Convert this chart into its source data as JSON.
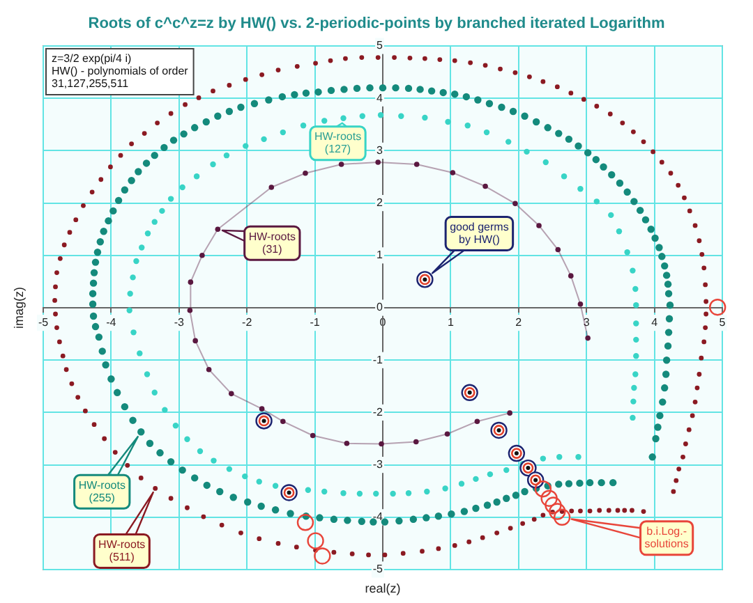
{
  "chart_data": {
    "type": "scatter",
    "title": "Roots of c^c^z=z by HW() vs. 2-periodic-points by branched iterated Logarithm",
    "xlabel": "real(z)",
    "ylabel": "imag(z)",
    "annotations": [
      "z=3/2 exp(pi/4 i)",
      "HW() - polynomials of order",
      "31,127,255,511"
    ],
    "xlim": [
      -5,
      5
    ],
    "ylim": [
      -5,
      5
    ],
    "xticks": [
      -5,
      -4,
      -3,
      -2,
      -1,
      0,
      1,
      2,
      3,
      4,
      5
    ],
    "yticks": [
      -5,
      -4,
      -3,
      -2,
      -1,
      0,
      1,
      2,
      3,
      4,
      5
    ],
    "grid": true,
    "marker": "circle",
    "series": [
      {
        "name": "HW-roots (511)",
        "color": "#8b1a22",
        "x": [
          4.28,
          4.32,
          4.36,
          4.42,
          4.46,
          4.51,
          4.56,
          4.6,
          4.63,
          4.66,
          4.69,
          4.73,
          4.75,
          4.76,
          4.76,
          4.75,
          4.73,
          4.7,
          4.66,
          4.6,
          4.52,
          4.44,
          4.35,
          4.24,
          4.11,
          3.98,
          3.84,
          3.69,
          3.53,
          3.35,
          3.15,
          2.96,
          2.77,
          2.57,
          2.36,
          2.16,
          1.95,
          1.73,
          1.51,
          1.29,
          1.06,
          0.84,
          0.62,
          0.4,
          0.17,
          -0.07,
          -0.31,
          -0.55,
          -0.77,
          -0.99,
          -1.26,
          -1.54,
          -1.78,
          -2.02,
          -2.26,
          -2.5,
          -2.71,
          -2.91,
          -3.12,
          -3.32,
          -3.51,
          -3.7,
          -3.86,
          -4.01,
          -4.15,
          -4.28,
          -4.41,
          -4.52,
          -4.61,
          -4.69,
          -4.75,
          -4.8,
          -4.82,
          -4.83,
          -4.82,
          -4.8,
          -4.76,
          -4.71,
          -4.66,
          -4.58,
          -4.49,
          -4.38,
          -4.25,
          -4.1,
          -3.94,
          -3.76,
          -3.56,
          -3.35,
          -3.12,
          -2.88,
          -2.64,
          -2.37,
          -2.09,
          -1.82,
          -1.54,
          -1.27,
          -0.99,
          -0.72,
          -0.45,
          -0.21,
          0.03,
          0.3,
          0.58,
          0.82,
          1.06,
          1.27,
          1.47,
          1.68,
          1.88,
          2.06,
          2.23,
          2.36,
          2.5,
          2.64,
          2.78,
          2.91,
          3.05,
          3.19,
          3.33,
          3.46,
          3.56,
          3.67,
          3.84
        ],
        "values": [
          -3.51,
          -3.3,
          -3.08,
          -2.85,
          -2.6,
          -2.33,
          -2.06,
          -1.8,
          -1.53,
          -1.27,
          -0.96,
          -0.65,
          -0.38,
          -0.12,
          0.12,
          0.44,
          0.76,
          1.02,
          1.28,
          1.57,
          1.85,
          2.1,
          2.34,
          2.57,
          2.78,
          2.98,
          3.17,
          3.36,
          3.53,
          3.7,
          3.85,
          3.98,
          4.1,
          4.22,
          4.32,
          4.41,
          4.49,
          4.56,
          4.63,
          4.68,
          4.72,
          4.74,
          4.76,
          4.77,
          4.78,
          4.78,
          4.78,
          4.76,
          4.72,
          4.67,
          4.61,
          4.54,
          4.45,
          4.36,
          4.25,
          4.14,
          4.01,
          3.88,
          3.71,
          3.53,
          3.33,
          3.13,
          2.91,
          2.69,
          2.45,
          2.21,
          1.95,
          1.68,
          1.44,
          1.2,
          0.94,
          0.67,
          0.4,
          0.14,
          -0.12,
          -0.38,
          -0.65,
          -0.92,
          -1.18,
          -1.45,
          -1.71,
          -1.97,
          -2.23,
          -2.5,
          -2.76,
          -3.01,
          -3.25,
          -3.45,
          -3.64,
          -3.82,
          -3.99,
          -4.15,
          -4.3,
          -4.41,
          -4.5,
          -4.57,
          -4.63,
          -4.67,
          -4.7,
          -4.72,
          -4.72,
          -4.69,
          -4.65,
          -4.6,
          -4.54,
          -4.47,
          -4.39,
          -4.3,
          -4.21,
          -4.12,
          -4.04,
          -3.96,
          -3.9,
          -3.89,
          -3.88,
          -3.88,
          -3.88,
          -3.87,
          -3.87,
          -3.87,
          -3.87,
          -3.87,
          -3.89
        ]
      },
      {
        "name": "HW-roots (255)",
        "color": "#148a7c",
        "x": [
          3.97,
          4.02,
          4.05,
          4.08,
          4.12,
          4.15,
          4.17,
          4.18,
          4.2,
          4.21,
          4.22,
          4.23,
          4.21,
          4.2,
          4.18,
          4.15,
          4.11,
          4.07,
          4.01,
          3.95,
          3.87,
          3.79,
          3.7,
          3.6,
          3.49,
          3.37,
          3.25,
          3.14,
          3.02,
          2.88,
          2.74,
          2.59,
          2.43,
          2.26,
          2.09,
          1.92,
          1.75,
          1.57,
          1.4,
          1.23,
          1.06,
          0.89,
          0.72,
          0.55,
          0.38,
          0.19,
          0.0,
          -0.19,
          -0.38,
          -0.57,
          -0.76,
          -0.95,
          -1.13,
          -1.3,
          -1.48,
          -1.68,
          -1.89,
          -2.09,
          -2.26,
          -2.43,
          -2.6,
          -2.77,
          -2.93,
          -3.08,
          -3.22,
          -3.36,
          -3.48,
          -3.6,
          -3.7,
          -3.8,
          -3.89,
          -3.97,
          -4.04,
          -4.11,
          -4.16,
          -4.2,
          -4.23,
          -4.25,
          -4.26,
          -4.27,
          -4.27,
          -4.26,
          -4.23,
          -4.18,
          -4.13,
          -4.08,
          -4.0,
          -3.91,
          -3.8,
          -3.68,
          -3.56,
          -3.43,
          -3.28,
          -3.12,
          -2.95,
          -2.77,
          -2.59,
          -2.4,
          -2.2,
          -1.99,
          -1.79,
          -1.58,
          -1.36,
          -1.13,
          -0.93,
          -0.72,
          -0.52,
          -0.31,
          -0.14,
          0.03,
          0.24,
          0.45,
          0.64,
          0.82,
          1.01,
          1.2,
          1.37,
          1.54,
          1.68,
          1.82,
          1.96,
          2.09,
          2.26,
          2.43,
          2.59,
          2.74,
          2.9,
          3.05,
          3.22,
          3.39
        ],
        "values": [
          -2.85,
          -2.5,
          -2.28,
          -2.06,
          -1.8,
          -1.53,
          -1.27,
          -1.0,
          -0.73,
          -0.47,
          -0.21,
          0.05,
          0.27,
          0.45,
          0.62,
          0.8,
          0.98,
          1.15,
          1.33,
          1.5,
          1.68,
          1.86,
          2.03,
          2.21,
          2.38,
          2.54,
          2.69,
          2.83,
          2.96,
          3.09,
          3.22,
          3.33,
          3.44,
          3.55,
          3.66,
          3.75,
          3.83,
          3.9,
          3.97,
          4.03,
          4.08,
          4.11,
          4.14,
          4.17,
          4.19,
          4.2,
          4.2,
          4.2,
          4.19,
          4.17,
          4.15,
          4.12,
          4.1,
          4.07,
          4.03,
          3.97,
          3.9,
          3.83,
          3.75,
          3.66,
          3.55,
          3.44,
          3.32,
          3.2,
          3.06,
          2.91,
          2.76,
          2.6,
          2.43,
          2.25,
          2.05,
          1.85,
          1.66,
          1.46,
          1.26,
          1.06,
          0.87,
          0.67,
          0.47,
          0.27,
          0.07,
          -0.16,
          -0.36,
          -0.56,
          -0.83,
          -1.09,
          -1.36,
          -1.62,
          -1.89,
          -2.15,
          -2.37,
          -2.59,
          -2.77,
          -2.94,
          -3.1,
          -3.25,
          -3.39,
          -3.51,
          -3.62,
          -3.71,
          -3.79,
          -3.86,
          -3.93,
          -3.98,
          -4.01,
          -4.04,
          -4.06,
          -4.08,
          -4.09,
          -4.09,
          -4.07,
          -4.04,
          -4.01,
          -3.98,
          -3.94,
          -3.89,
          -3.83,
          -3.77,
          -3.71,
          -3.64,
          -3.58,
          -3.51,
          -3.45,
          -3.4,
          -3.37,
          -3.36,
          -3.35,
          -3.34,
          -3.34,
          -3.34
        ]
      },
      {
        "name": "HW-roots (127)",
        "color": "#38d4c6",
        "x": [
          3.68,
          3.69,
          3.7,
          3.72,
          3.73,
          3.73,
          3.73,
          3.73,
          3.72,
          3.68,
          3.6,
          3.48,
          3.36,
          3.15,
          2.91,
          2.67,
          2.4,
          2.12,
          1.85,
          1.53,
          1.25,
          0.96,
          0.62,
          0.27,
          -0.03,
          -0.3,
          -0.58,
          -0.86,
          -1.17,
          -1.47,
          -1.75,
          -2.02,
          -2.3,
          -2.5,
          -2.74,
          -2.95,
          -3.12,
          -3.25,
          -3.36,
          -3.46,
          -3.55,
          -3.63,
          -3.68,
          -3.72,
          -3.73,
          -3.67,
          -3.58,
          -3.47,
          -3.36,
          -3.21,
          -3.05,
          -2.88,
          -2.69,
          -2.49,
          -2.26,
          -2.03,
          -1.82,
          -1.58,
          -1.1,
          -0.86,
          -0.58,
          -0.34,
          -0.1,
          0.15,
          0.38,
          0.65,
          0.92,
          1.16,
          1.37,
          1.58,
          1.82,
          2.06,
          2.36,
          2.6,
          2.88
        ],
        "values": [
          -2.1,
          -1.79,
          -1.53,
          -1.27,
          -0.92,
          -0.61,
          -0.3,
          0.05,
          0.36,
          0.71,
          1.06,
          1.46,
          1.77,
          2.03,
          2.27,
          2.51,
          2.78,
          2.98,
          3.17,
          3.35,
          3.48,
          3.55,
          3.63,
          3.66,
          3.68,
          3.66,
          3.62,
          3.57,
          3.48,
          3.35,
          3.22,
          3.09,
          2.91,
          2.74,
          2.51,
          2.3,
          2.08,
          1.85,
          1.64,
          1.42,
          1.15,
          0.89,
          0.58,
          0.27,
          -0.05,
          -0.47,
          -0.87,
          -1.27,
          -1.62,
          -1.95,
          -2.25,
          -2.51,
          -2.74,
          -2.92,
          -3.08,
          -3.22,
          -3.32,
          -3.4,
          -3.48,
          -3.51,
          -3.54,
          -3.55,
          -3.55,
          -3.55,
          -3.54,
          -3.51,
          -3.45,
          -3.36,
          -3.27,
          -3.18,
          -3.1,
          -2.98,
          -2.88,
          -2.85,
          -2.85
        ]
      },
      {
        "name": "HW-roots (31)",
        "type": "line",
        "color": "#5a1840",
        "x": [
          1.87,
          1.39,
          0.95,
          0.49,
          -0.02,
          -0.53,
          -1.03,
          -1.47,
          -1.78,
          -2.23,
          -2.56,
          -2.76,
          -2.84,
          -2.83,
          -2.66,
          -2.43,
          -1.64,
          -1.14,
          -0.61,
          -0.07,
          0.5,
          1.03,
          1.51,
          1.95,
          2.3,
          2.58,
          2.77,
          2.91,
          3.02
        ],
        "values": [
          -2.01,
          -2.17,
          -2.41,
          -2.56,
          -2.6,
          -2.59,
          -2.44,
          -2.17,
          -1.93,
          -1.64,
          -1.18,
          -0.63,
          -0.05,
          0.49,
          1.0,
          1.5,
          2.3,
          2.57,
          2.74,
          2.78,
          2.74,
          2.58,
          2.32,
          1.99,
          1.57,
          1.11,
          0.61,
          0.07,
          -0.58
        ]
      },
      {
        "name": "good germs by HW()",
        "color": "#1c2470",
        "x": [
          0.62,
          -1.75,
          -1.38,
          1.28,
          1.71,
          1.97,
          2.14,
          2.25
        ],
        "values": [
          0.54,
          -2.16,
          -3.53,
          -1.62,
          -2.34,
          -2.78,
          -3.06,
          -3.29
        ]
      },
      {
        "name": "b.i.Log.-solutions",
        "color": "#e8453a",
        "x": [
          4.93,
          -1.14,
          -0.99,
          -0.89,
          2.36,
          2.45,
          2.51,
          2.57,
          2.64
        ],
        "values": [
          0.01,
          -4.1,
          -4.45,
          -4.74,
          -3.46,
          -3.64,
          -3.77,
          -3.89,
          -4.0
        ]
      }
    ]
  }
}
